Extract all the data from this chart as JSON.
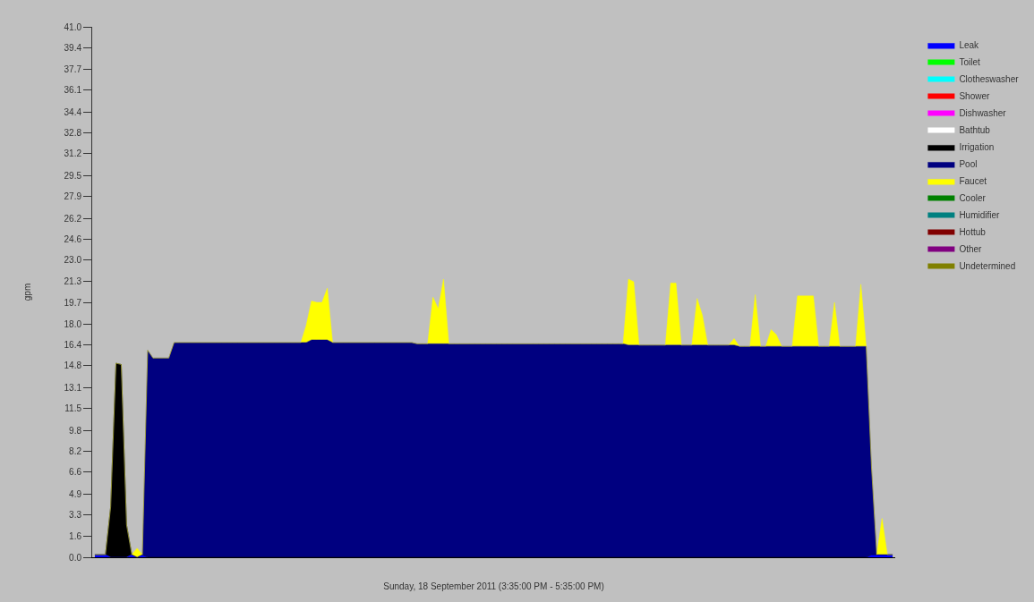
{
  "chart_data": {
    "type": "area",
    "stacked": true,
    "xlabel": "Sunday, 18 September 2011 (3:35:00 PM - 5:35:00 PM)",
    "ylabel": "gpm",
    "ylim": [
      0,
      41
    ],
    "yticks": [
      {
        "value": 0,
        "label": "0.0"
      },
      1.6,
      3.3,
      4.9,
      6.6,
      8.2,
      9.8,
      11.5,
      13.1,
      14.8,
      16.4,
      {
        "value": 18,
        "label": "18.0"
      },
      19.7,
      21.3,
      {
        "value": 23,
        "label": "23.0"
      },
      24.6,
      26.2,
      27.9,
      29.5,
      31.2,
      32.8,
      34.4,
      36.1,
      37.7,
      39.4,
      {
        "value": 41,
        "label": "41.0"
      }
    ],
    "tick_labels": "y",
    "grid": false,
    "legend": "right",
    "categories": [
      null,
      null,
      null,
      null,
      null,
      null,
      null,
      null,
      null,
      null,
      null,
      null,
      null,
      null,
      null,
      null,
      null,
      null,
      null,
      null,
      null,
      null,
      null,
      null,
      null,
      null,
      null,
      null,
      null,
      null,
      null,
      null,
      null,
      null,
      null,
      null,
      null,
      null,
      null,
      null,
      null,
      null,
      null,
      null,
      null,
      null,
      null,
      null,
      null,
      null,
      null,
      null,
      null,
      null,
      null,
      null,
      null,
      null,
      null,
      null,
      null,
      null,
      null,
      null,
      null,
      null,
      null,
      null,
      null,
      null,
      null,
      null,
      null,
      null,
      null,
      null,
      null,
      null,
      null,
      null,
      null,
      null,
      null,
      null,
      null,
      null,
      null,
      null,
      null,
      null,
      null,
      null,
      null,
      null,
      null,
      null,
      null,
      null,
      null,
      null,
      null,
      null,
      null,
      null,
      null,
      null,
      null,
      null,
      null,
      null,
      null,
      null,
      null,
      null,
      null,
      null,
      null,
      null,
      null,
      null,
      null,
      null,
      null,
      null,
      null,
      null,
      null,
      null,
      null,
      null,
      null,
      null,
      null,
      null,
      null,
      null,
      null,
      null,
      null,
      null,
      null,
      null,
      null,
      null,
      null,
      null,
      null,
      null,
      null,
      null,
      null,
      null
    ],
    "series": [
      {
        "name": "Leak",
        "color": "#0000ff",
        "values": [
          0.2,
          0.2,
          0.2,
          0,
          0,
          0,
          0,
          0.2,
          0,
          0.2,
          0,
          0,
          0,
          0,
          0,
          0,
          0,
          0,
          0,
          0,
          0,
          0,
          0,
          0,
          0,
          0,
          0,
          0,
          0,
          0,
          0,
          0,
          0,
          0,
          0,
          0,
          0,
          0,
          0,
          0,
          0,
          0,
          0,
          0,
          0,
          0,
          0,
          0,
          0,
          0,
          0,
          0,
          0,
          0,
          0,
          0,
          0,
          0,
          0,
          0,
          0,
          0,
          0,
          0,
          0,
          0,
          0,
          0,
          0,
          0,
          0,
          0,
          0,
          0,
          0,
          0,
          0,
          0,
          0,
          0,
          0,
          0,
          0,
          0,
          0,
          0,
          0,
          0,
          0,
          0,
          0,
          0,
          0,
          0,
          0,
          0,
          0,
          0,
          0,
          0,
          0,
          0,
          0,
          0,
          0,
          0,
          0,
          0,
          0,
          0,
          0,
          0,
          0,
          0,
          0,
          0,
          0,
          0,
          0,
          0,
          0,
          0,
          0,
          0,
          0,
          0,
          0,
          0,
          0,
          0,
          0,
          0,
          0,
          0,
          0,
          0,
          0,
          0,
          0,
          0,
          0,
          0,
          0,
          0,
          0,
          0,
          0,
          0.2,
          0.2,
          0.2,
          0.2,
          0.2
        ]
      },
      {
        "name": "Toilet",
        "color": "#00ff00",
        "values": [
          null,
          null,
          null,
          null,
          null,
          null,
          null,
          null,
          null,
          null,
          null,
          null,
          null,
          null,
          null,
          null,
          null,
          null,
          null,
          null,
          null,
          null,
          null,
          null,
          null,
          null,
          null,
          null,
          null,
          null,
          null,
          null,
          null,
          null,
          null,
          null,
          null,
          null,
          null,
          null,
          null,
          null,
          null,
          null,
          null,
          null,
          null,
          null,
          null,
          null,
          null,
          null,
          null,
          null,
          null,
          null,
          null,
          null,
          null,
          null,
          null,
          null,
          null,
          null,
          null,
          null,
          null,
          null,
          null,
          null,
          null,
          null,
          null,
          null,
          null,
          null,
          null,
          null,
          null,
          null,
          null,
          null,
          null,
          null,
          null,
          null,
          null,
          null,
          null,
          null,
          null,
          null,
          null,
          null,
          null,
          null,
          null,
          null,
          null,
          null,
          null,
          null,
          null,
          null,
          null,
          null,
          null,
          null,
          null,
          null,
          null,
          null,
          null,
          null,
          null,
          null,
          null,
          null,
          null,
          null,
          null,
          null,
          null,
          null,
          null,
          null,
          null,
          null,
          null,
          null,
          null,
          null,
          null,
          null,
          null,
          null,
          null,
          null,
          null,
          null,
          null,
          null,
          null,
          null,
          null,
          null,
          null,
          null,
          null,
          null,
          null,
          null
        ]
      },
      {
        "name": "Clotheswasher",
        "color": "#00ffff",
        "values": [
          null,
          null,
          null,
          null,
          null,
          null,
          null,
          null,
          null,
          null,
          null,
          null,
          null,
          null,
          null,
          null,
          null,
          null,
          null,
          null,
          null,
          null,
          null,
          null,
          null,
          null,
          null,
          null,
          null,
          null,
          null,
          null,
          null,
          null,
          null,
          null,
          null,
          null,
          null,
          null,
          null,
          null,
          null,
          null,
          null,
          null,
          null,
          null,
          null,
          null,
          null,
          null,
          null,
          null,
          null,
          null,
          null,
          null,
          null,
          null,
          null,
          null,
          null,
          null,
          null,
          null,
          null,
          null,
          null,
          null,
          null,
          null,
          null,
          null,
          null,
          null,
          null,
          null,
          null,
          null,
          null,
          null,
          null,
          null,
          null,
          null,
          null,
          null,
          null,
          null,
          null,
          null,
          null,
          null,
          null,
          null,
          null,
          null,
          null,
          null,
          null,
          null,
          null,
          null,
          null,
          null,
          null,
          null,
          null,
          null,
          null,
          null,
          null,
          null,
          null,
          null,
          null,
          null,
          null,
          null,
          null,
          null,
          null,
          null,
          null,
          null,
          null,
          null,
          null,
          null,
          null,
          null,
          null,
          null,
          null,
          null,
          null,
          null,
          null,
          null,
          null,
          null,
          null,
          null,
          null,
          null,
          null,
          null,
          null,
          null,
          null,
          null
        ]
      },
      {
        "name": "Shower",
        "color": "#ff0000",
        "values": [
          null,
          null,
          null,
          null,
          null,
          null,
          null,
          null,
          null,
          null,
          null,
          null,
          null,
          null,
          null,
          null,
          null,
          null,
          null,
          null,
          null,
          null,
          null,
          null,
          null,
          null,
          null,
          null,
          null,
          null,
          null,
          null,
          null,
          null,
          null,
          null,
          null,
          null,
          null,
          null,
          null,
          null,
          null,
          null,
          null,
          null,
          null,
          null,
          null,
          null,
          null,
          null,
          null,
          null,
          null,
          null,
          null,
          null,
          null,
          null,
          null,
          null,
          null,
          null,
          null,
          null,
          null,
          null,
          null,
          null,
          null,
          null,
          null,
          null,
          null,
          null,
          null,
          null,
          null,
          null,
          null,
          null,
          null,
          null,
          null,
          null,
          null,
          null,
          null,
          null,
          null,
          null,
          null,
          null,
          null,
          null,
          null,
          null,
          null,
          null,
          null,
          null,
          null,
          null,
          null,
          null,
          null,
          null,
          null,
          null,
          null,
          null,
          null,
          null,
          null,
          null,
          null,
          null,
          null,
          null,
          null,
          null,
          null,
          null,
          null,
          null,
          null,
          null,
          null,
          null,
          null,
          null,
          null,
          null,
          null,
          null,
          null,
          null,
          null,
          null,
          null,
          null,
          null,
          null,
          null,
          null,
          null,
          null,
          null,
          null,
          null,
          null
        ]
      },
      {
        "name": "Dishwasher",
        "color": "#ff00ff",
        "values": [
          null,
          null,
          null,
          null,
          null,
          null,
          null,
          null,
          null,
          null,
          null,
          null,
          null,
          null,
          null,
          null,
          null,
          null,
          null,
          null,
          null,
          null,
          null,
          null,
          null,
          null,
          null,
          null,
          null,
          null,
          null,
          null,
          null,
          null,
          null,
          null,
          null,
          null,
          null,
          null,
          null,
          null,
          null,
          null,
          null,
          null,
          null,
          null,
          null,
          null,
          null,
          null,
          null,
          null,
          null,
          null,
          null,
          null,
          null,
          null,
          null,
          null,
          null,
          null,
          null,
          null,
          null,
          null,
          null,
          null,
          null,
          null,
          null,
          null,
          null,
          null,
          null,
          null,
          null,
          null,
          null,
          null,
          null,
          null,
          null,
          null,
          null,
          null,
          null,
          null,
          null,
          null,
          null,
          null,
          null,
          null,
          null,
          null,
          null,
          null,
          null,
          null,
          null,
          null,
          null,
          null,
          null,
          null,
          null,
          null,
          null,
          null,
          null,
          null,
          null,
          null,
          null,
          null,
          null,
          null,
          null,
          null,
          null,
          null,
          null,
          null,
          null,
          null,
          null,
          null,
          null,
          null,
          null,
          null,
          null,
          null,
          null,
          null,
          null,
          null,
          null,
          null,
          null,
          null,
          null,
          null,
          null,
          null,
          null,
          null,
          null,
          null
        ]
      },
      {
        "name": "Bathtub",
        "color": "#ffffff",
        "values": [
          null,
          null,
          null,
          null,
          null,
          null,
          null,
          null,
          null,
          null,
          null,
          null,
          null,
          null,
          null,
          null,
          null,
          null,
          null,
          null,
          null,
          null,
          null,
          null,
          null,
          null,
          null,
          null,
          null,
          null,
          null,
          null,
          null,
          null,
          null,
          null,
          null,
          null,
          null,
          null,
          null,
          null,
          null,
          null,
          null,
          null,
          null,
          null,
          null,
          null,
          null,
          null,
          null,
          null,
          null,
          null,
          null,
          null,
          null,
          null,
          null,
          null,
          null,
          null,
          null,
          null,
          null,
          null,
          null,
          null,
          null,
          null,
          null,
          null,
          null,
          null,
          null,
          null,
          null,
          null,
          null,
          null,
          null,
          null,
          null,
          null,
          null,
          null,
          null,
          null,
          null,
          null,
          null,
          null,
          null,
          null,
          null,
          null,
          null,
          null,
          null,
          null,
          null,
          null,
          null,
          null,
          null,
          null,
          null,
          null,
          null,
          null,
          null,
          null,
          null,
          null,
          null,
          null,
          null,
          null,
          null,
          null,
          null,
          null,
          null,
          null,
          null,
          null,
          null,
          null,
          null,
          null,
          null,
          null,
          null,
          null,
          null,
          null,
          null,
          null,
          null,
          null,
          null,
          null,
          null,
          null,
          null,
          null,
          null,
          null,
          null,
          null
        ]
      },
      {
        "name": "Irrigation",
        "color": "#000000",
        "values": [
          0,
          0,
          0,
          3.9,
          15.0,
          14.9,
          2.5,
          0,
          0,
          0,
          0,
          0,
          0,
          0,
          0,
          0,
          0,
          0,
          0,
          0,
          0,
          0,
          0,
          0,
          0,
          0,
          0,
          0,
          0,
          0,
          0,
          0,
          0,
          0,
          0,
          0,
          0,
          0,
          0,
          0,
          0,
          0,
          0,
          0,
          0,
          0,
          0,
          0,
          0,
          0,
          0,
          0,
          0,
          0,
          0,
          0,
          0,
          0,
          0,
          0,
          0,
          0,
          0,
          0,
          0,
          0,
          0,
          0,
          0,
          0,
          0,
          0,
          0,
          0,
          0,
          0,
          0,
          0,
          0,
          0,
          0,
          0,
          0,
          0,
          0,
          0,
          0,
          0,
          0,
          0,
          0,
          0,
          0,
          0,
          0,
          0,
          0,
          0,
          0,
          0,
          0,
          0,
          0,
          0,
          0,
          0,
          0,
          0,
          0,
          0,
          0,
          0,
          0,
          0,
          0,
          0,
          0,
          0,
          0,
          0,
          0,
          0,
          0,
          0,
          0,
          0,
          0,
          0,
          0,
          0,
          0,
          0,
          0,
          0,
          0,
          0,
          0,
          0,
          0,
          0,
          0,
          0,
          0,
          0,
          0,
          0,
          0,
          0,
          0,
          0,
          0,
          0
        ]
      },
      {
        "name": "Pool",
        "color": "#000080",
        "values": [
          0,
          0,
          0,
          0,
          0,
          0,
          0,
          0,
          0,
          0,
          16.0,
          15.4,
          15.4,
          15.4,
          15.4,
          16.6,
          16.6,
          16.6,
          16.6,
          16.6,
          16.6,
          16.6,
          16.6,
          16.6,
          16.6,
          16.6,
          16.6,
          16.6,
          16.6,
          16.6,
          16.6,
          16.6,
          16.6,
          16.6,
          16.6,
          16.6,
          16.6,
          16.6,
          16.6,
          16.6,
          16.6,
          16.8,
          16.8,
          16.8,
          16.8,
          16.6,
          16.6,
          16.6,
          16.6,
          16.6,
          16.6,
          16.6,
          16.6,
          16.6,
          16.6,
          16.6,
          16.6,
          16.6,
          16.6,
          16.6,
          16.6,
          16.5,
          16.5,
          16.5,
          16.5,
          16.5,
          16.5,
          16.5,
          16.5,
          16.5,
          16.5,
          16.5,
          16.5,
          16.5,
          16.5,
          16.5,
          16.5,
          16.5,
          16.5,
          16.5,
          16.5,
          16.5,
          16.5,
          16.5,
          16.5,
          16.5,
          16.5,
          16.5,
          16.5,
          16.5,
          16.5,
          16.5,
          16.5,
          16.5,
          16.5,
          16.5,
          16.5,
          16.5,
          16.5,
          16.5,
          16.5,
          16.4,
          16.4,
          16.4,
          16.4,
          16.4,
          16.4,
          16.4,
          16.4,
          16.4,
          16.4,
          16.4,
          16.4,
          16.4,
          16.4,
          16.4,
          16.4,
          16.4,
          16.4,
          16.4,
          16.4,
          16.4,
          16.3,
          16.3,
          16.3,
          16.3,
          16.3,
          16.3,
          16.3,
          16.3,
          16.3,
          16.3,
          16.3,
          16.3,
          16.3,
          16.3,
          16.3,
          16.3,
          16.3,
          16.3,
          16.3,
          16.3,
          16.3,
          16.3,
          16.3,
          16.3,
          16.3,
          6.8,
          0,
          0,
          0,
          0
        ]
      },
      {
        "name": "Faucet",
        "color": "#ffff00",
        "values": [
          0,
          0,
          0,
          0,
          0,
          0,
          0,
          0,
          0.7,
          0,
          0,
          0,
          0,
          0,
          0,
          0,
          0,
          0,
          0,
          0,
          0,
          0,
          0,
          0,
          0,
          0,
          0,
          0,
          0,
          0,
          0,
          0,
          0,
          0,
          0,
          0,
          0,
          0,
          0,
          0,
          1.3,
          3.0,
          2.9,
          2.9,
          4.0,
          0,
          0,
          0,
          0,
          0,
          0,
          0,
          0,
          0,
          0,
          0,
          0,
          0,
          0,
          0,
          0,
          0,
          0,
          0,
          3.6,
          2.7,
          5.0,
          0,
          0,
          0,
          0,
          0,
          0,
          0,
          0,
          0,
          0,
          0,
          0,
          0,
          0,
          0,
          0,
          0,
          0,
          0,
          0,
          0,
          0,
          0,
          0,
          0,
          0,
          0,
          0,
          0,
          0,
          0,
          0,
          0,
          0,
          5.1,
          4.9,
          0,
          0,
          0,
          0,
          0,
          0,
          4.8,
          4.8,
          0,
          0,
          0,
          3.6,
          2.3,
          0,
          0,
          0,
          0,
          0,
          0.5,
          0,
          0,
          0,
          4.0,
          0,
          0,
          1.3,
          0.9,
          0,
          0,
          0,
          3.9,
          3.9,
          3.9,
          3.9,
          0,
          0,
          0,
          3.4,
          0,
          0,
          0,
          0,
          4.8,
          0,
          0,
          0,
          2.8,
          0,
          0
        ]
      },
      {
        "name": "Cooler",
        "color": "#008000",
        "values": [
          null,
          null,
          null,
          null,
          null,
          null,
          null,
          null,
          null,
          null,
          null,
          null,
          null,
          null,
          null,
          null,
          null,
          null,
          null,
          null,
          null,
          null,
          null,
          null,
          null,
          null,
          null,
          null,
          null,
          null,
          null,
          null,
          null,
          null,
          null,
          null,
          null,
          null,
          null,
          null,
          null,
          null,
          null,
          null,
          null,
          null,
          null,
          null,
          null,
          null,
          null,
          null,
          null,
          null,
          null,
          null,
          null,
          null,
          null,
          null,
          null,
          null,
          null,
          null,
          null,
          null,
          null,
          null,
          null,
          null,
          null,
          null,
          null,
          null,
          null,
          null,
          null,
          null,
          null,
          null,
          null,
          null,
          null,
          null,
          null,
          null,
          null,
          null,
          null,
          null,
          null,
          null,
          null,
          null,
          null,
          null,
          null,
          null,
          null,
          null,
          null,
          null,
          null,
          null,
          null,
          null,
          null,
          null,
          null,
          null,
          null,
          null,
          null,
          null,
          null,
          null,
          null,
          null,
          null,
          null,
          null,
          null,
          null,
          null,
          null,
          null,
          null,
          null,
          null,
          null,
          null,
          null,
          null,
          null,
          null,
          null,
          null,
          null,
          null,
          null,
          null,
          null,
          null,
          null,
          null,
          null,
          null,
          null,
          null,
          null,
          null,
          null
        ]
      },
      {
        "name": "Humidifier",
        "color": "#008080",
        "values": [
          null,
          null,
          null,
          null,
          null,
          null,
          null,
          null,
          null,
          null,
          null,
          null,
          null,
          null,
          null,
          null,
          null,
          null,
          null,
          null,
          null,
          null,
          null,
          null,
          null,
          null,
          null,
          null,
          null,
          null,
          null,
          null,
          null,
          null,
          null,
          null,
          null,
          null,
          null,
          null,
          null,
          null,
          null,
          null,
          null,
          null,
          null,
          null,
          null,
          null,
          null,
          null,
          null,
          null,
          null,
          null,
          null,
          null,
          null,
          null,
          null,
          null,
          null,
          null,
          null,
          null,
          null,
          null,
          null,
          null,
          null,
          null,
          null,
          null,
          null,
          null,
          null,
          null,
          null,
          null,
          null,
          null,
          null,
          null,
          null,
          null,
          null,
          null,
          null,
          null,
          null,
          null,
          null,
          null,
          null,
          null,
          null,
          null,
          null,
          null,
          null,
          null,
          null,
          null,
          null,
          null,
          null,
          null,
          null,
          null,
          null,
          null,
          null,
          null,
          null,
          null,
          null,
          null,
          null,
          null,
          null,
          null,
          null,
          null,
          null,
          null,
          null,
          null,
          null,
          null,
          null,
          null,
          null,
          null,
          null,
          null,
          null,
          null,
          null,
          null,
          null,
          null,
          null,
          null,
          null,
          null,
          null,
          null,
          null,
          null,
          null,
          null
        ]
      },
      {
        "name": "Hottub",
        "color": "#800000",
        "values": [
          null,
          null,
          null,
          null,
          null,
          null,
          null,
          null,
          null,
          null,
          null,
          null,
          null,
          null,
          null,
          null,
          null,
          null,
          null,
          null,
          null,
          null,
          null,
          null,
          null,
          null,
          null,
          null,
          null,
          null,
          null,
          null,
          null,
          null,
          null,
          null,
          null,
          null,
          null,
          null,
          null,
          null,
          null,
          null,
          null,
          null,
          null,
          null,
          null,
          null,
          null,
          null,
          null,
          null,
          null,
          null,
          null,
          null,
          null,
          null,
          null,
          null,
          null,
          null,
          null,
          null,
          null,
          null,
          null,
          null,
          null,
          null,
          null,
          null,
          null,
          null,
          null,
          null,
          null,
          null,
          null,
          null,
          null,
          null,
          null,
          null,
          null,
          null,
          null,
          null,
          null,
          null,
          null,
          null,
          null,
          null,
          null,
          null,
          null,
          null,
          null,
          null,
          null,
          null,
          null,
          null,
          null,
          null,
          null,
          null,
          null,
          null,
          null,
          null,
          null,
          null,
          null,
          null,
          null,
          null,
          null,
          null,
          null,
          null,
          null,
          null,
          null,
          null,
          null,
          null,
          null,
          null,
          null,
          null,
          null,
          null,
          null,
          null,
          null,
          null,
          null,
          null,
          null,
          null,
          null,
          null,
          null,
          null,
          null,
          null,
          null,
          null
        ]
      },
      {
        "name": "Other",
        "color": "#800080",
        "values": [
          null,
          null,
          null,
          null,
          null,
          null,
          null,
          null,
          null,
          null,
          null,
          null,
          null,
          null,
          null,
          null,
          null,
          null,
          null,
          null,
          null,
          null,
          null,
          null,
          null,
          null,
          null,
          null,
          null,
          null,
          null,
          null,
          null,
          null,
          null,
          null,
          null,
          null,
          null,
          null,
          null,
          null,
          null,
          null,
          null,
          null,
          null,
          null,
          null,
          null,
          null,
          null,
          null,
          null,
          null,
          null,
          null,
          null,
          null,
          null,
          null,
          null,
          null,
          null,
          null,
          null,
          null,
          null,
          null,
          null,
          null,
          null,
          null,
          null,
          null,
          null,
          null,
          null,
          null,
          null,
          null,
          null,
          null,
          null,
          null,
          null,
          null,
          null,
          null,
          null,
          null,
          null,
          null,
          null,
          null,
          null,
          null,
          null,
          null,
          null,
          null,
          null,
          null,
          null,
          null,
          null,
          null,
          null,
          null,
          null,
          null,
          null,
          null,
          null,
          null,
          null,
          null,
          null,
          null,
          null,
          null,
          null,
          null,
          null,
          null,
          null,
          null,
          null,
          null,
          null,
          null,
          null,
          null,
          null,
          null,
          null,
          null,
          null,
          null,
          null,
          null,
          null,
          null,
          null,
          null,
          null,
          null,
          null,
          null,
          null,
          null,
          null
        ]
      },
      {
        "name": "Undetermined",
        "color": "#808000",
        "values": [
          null,
          null,
          null,
          null,
          null,
          null,
          null,
          null,
          null,
          null,
          null,
          null,
          null,
          null,
          null,
          null,
          null,
          null,
          null,
          null,
          null,
          null,
          null,
          null,
          null,
          null,
          null,
          null,
          null,
          null,
          null,
          null,
          null,
          null,
          null,
          null,
          null,
          null,
          null,
          null,
          null,
          null,
          null,
          null,
          null,
          null,
          null,
          null,
          null,
          null,
          null,
          null,
          null,
          null,
          null,
          null,
          null,
          null,
          null,
          null,
          null,
          null,
          null,
          null,
          null,
          null,
          null,
          null,
          null,
          null,
          null,
          null,
          null,
          null,
          null,
          null,
          null,
          null,
          null,
          null,
          null,
          null,
          null,
          null,
          null,
          null,
          null,
          null,
          null,
          null,
          null,
          null,
          null,
          null,
          null,
          null,
          null,
          null,
          null,
          null,
          null,
          null,
          null,
          null,
          null,
          null,
          null,
          null,
          null,
          null,
          null,
          null,
          null,
          null,
          null,
          null,
          null,
          null,
          null,
          null,
          null,
          null,
          null,
          null,
          null,
          null,
          null,
          null,
          null,
          null,
          null,
          null,
          null,
          null,
          null,
          null,
          null,
          null,
          null,
          null,
          null,
          null,
          null,
          null,
          null,
          null,
          null,
          null,
          null,
          null,
          null,
          null
        ]
      }
    ]
  }
}
